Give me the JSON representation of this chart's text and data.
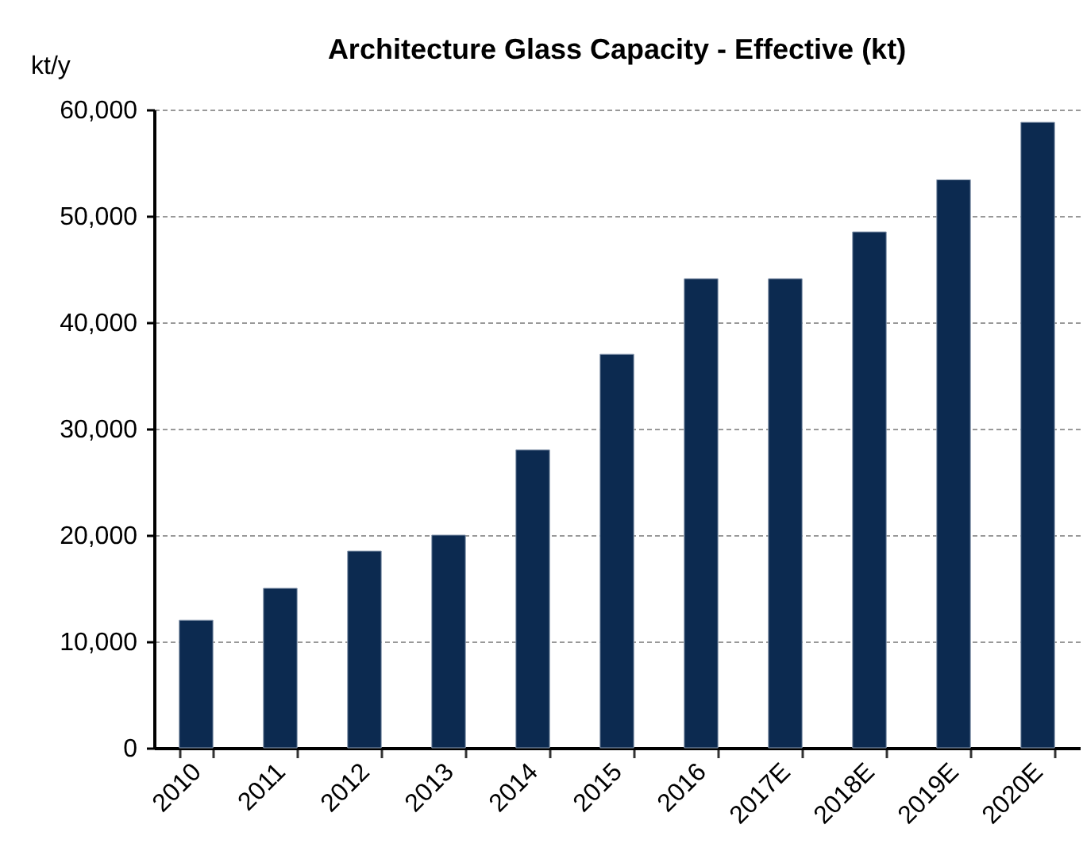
{
  "chart_data": {
    "type": "bar",
    "title": "Architecture Glass Capacity - Effective (kt)",
    "ylabel": "kt/y",
    "categories": [
      "2010",
      "2011",
      "2012",
      "2013",
      "2014",
      "2015",
      "2016",
      "2017E",
      "2018E",
      "2019E",
      "2020E"
    ],
    "values": [
      12000,
      15000,
      18500,
      20000,
      28000,
      37000,
      44100,
      44100,
      48500,
      53400,
      58800
    ],
    "color": "#0c2a50",
    "ylim": [
      0,
      60000
    ],
    "yticks": [
      0,
      {
        "value": 10000,
        "label": "10,000"
      },
      {
        "value": 20000,
        "label": "20,000"
      },
      {
        "value": 30000,
        "label": "30,000"
      },
      {
        "value": 40000,
        "label": "40,000"
      },
      {
        "value": 50000,
        "label": "50,000"
      },
      {
        "value": 60000,
        "label": "60,000"
      }
    ],
    "grid": "y"
  }
}
